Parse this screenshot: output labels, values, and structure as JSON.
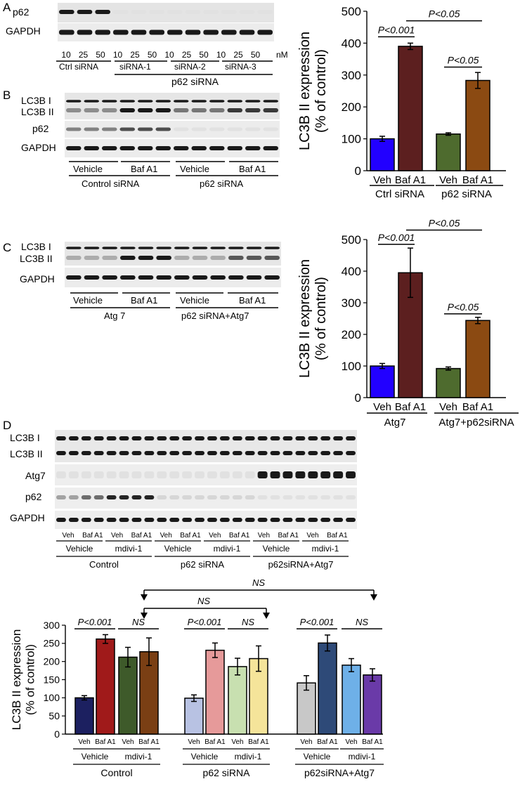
{
  "panels": {
    "A": {
      "label": "A",
      "blot_rows": [
        "p62",
        "GAPDH"
      ],
      "conc_labels": [
        "10",
        "25",
        "50",
        "10",
        "25",
        "50",
        "10",
        "25",
        "50",
        "10",
        "25",
        "50"
      ],
      "unit": "nM",
      "group_labels": [
        "Ctrl siRNA",
        "siRNA-1",
        "siRNA-2",
        "siRNA-3"
      ],
      "super_label": "p62 siRNA",
      "p62_band_strength": [
        1,
        1,
        1,
        0.05,
        0.05,
        0.05,
        0.05,
        0.05,
        0.05,
        0.05,
        0.05,
        0.05
      ],
      "gapdh_band_strength": [
        1,
        1,
        1,
        1,
        1,
        1,
        1,
        1,
        1,
        1,
        1,
        1
      ]
    },
    "B": {
      "label": "B",
      "blot_rows": [
        "LC3B I",
        "LC3B II",
        "p62",
        "GAPDH"
      ],
      "treatment_labels": [
        "Vehicle",
        "Baf A1",
        "Vehicle",
        "Baf A1"
      ],
      "group_labels": [
        "Control siRNA",
        "p62 siRNA"
      ],
      "lc3b2_band_strength": [
        0.45,
        0.45,
        0.45,
        1,
        1,
        1,
        0.55,
        0.55,
        0.55,
        0.85,
        0.85,
        0.85
      ],
      "p62_band_strength": [
        0.5,
        0.5,
        0.5,
        0.75,
        0.75,
        0.75,
        0.05,
        0.05,
        0.05,
        0.05,
        0.05,
        0.05
      ]
    },
    "C": {
      "label": "C",
      "blot_rows": [
        "LC3B I",
        "LC3B II",
        "GAPDH"
      ],
      "treatment_labels": [
        "Vehicle",
        "Baf A1",
        "Vehicle",
        "Baf A1"
      ],
      "group_labels": [
        "Atg 7",
        "p62 siRNA+Atg7"
      ],
      "lc3b2_band_strength": [
        0.3,
        0.3,
        0.3,
        1,
        1,
        1,
        0.3,
        0.3,
        0.3,
        0.7,
        0.7,
        0.7
      ]
    },
    "D": {
      "label": "D",
      "blot_rows": [
        "LC3B I",
        "LC3B II",
        "Atg7",
        "p62",
        "GAPDH"
      ],
      "veh_baf_labels": [
        "Veh",
        "Baf A1",
        "Veh",
        "Baf A1",
        "Veh",
        "Baf A1",
        "Veh",
        "Baf A1",
        "Veh",
        "Baf A1",
        "Veh",
        "Baf A1"
      ],
      "treatment_labels": [
        "Vehicle",
        "mdivi-1",
        "Vehicle",
        "mdivi-1",
        "Vehicle",
        "mdivi-1"
      ],
      "group_labels": [
        "Control",
        "p62 siRNA",
        "p62siRNA+Atg7"
      ],
      "atg7_band_strength": [
        0.05,
        0.05,
        0.05,
        0.05,
        0.05,
        0.05,
        0.05,
        0.05,
        1,
        1,
        1,
        1
      ],
      "p62_band_strength": [
        0.35,
        0.6,
        0.95,
        0.95,
        0.1,
        0.1,
        0.1,
        0.1,
        0.05,
        0.05,
        0.05,
        0.05
      ]
    }
  },
  "chart_data": [
    {
      "type": "bar",
      "panel": "B",
      "categories": [
        "Veh",
        "Baf A1",
        "Veh",
        "Baf A1"
      ],
      "values": [
        100,
        390,
        115,
        283
      ],
      "errors": [
        8,
        10,
        4,
        25
      ],
      "colors": [
        "#2200ff",
        "#5c1f1f",
        "#4e6b2e",
        "#8b4a12"
      ],
      "group_labels": [
        "Ctrl siRNA",
        "p62 siRNA"
      ],
      "ylabel": "LC3B II expression\n(% of control)",
      "ylim": [
        0,
        500
      ],
      "yticks": [
        0,
        100,
        200,
        300,
        400,
        500
      ],
      "annotations": [
        {
          "text": "P<0.001",
          "from": 0,
          "to": 1,
          "level": 420
        },
        {
          "text": "P<0.05",
          "from": 2,
          "to": 3,
          "level": 325
        },
        {
          "text": "P<0.05",
          "from": 1,
          "to": 3,
          "level": 470
        }
      ]
    },
    {
      "type": "bar",
      "panel": "C",
      "categories": [
        "Veh",
        "Baf A1",
        "Veh",
        "Baf A1"
      ],
      "values": [
        100,
        395,
        92,
        244
      ],
      "errors": [
        8,
        78,
        5,
        10
      ],
      "colors": [
        "#2200ff",
        "#5c1f1f",
        "#4e6b2e",
        "#8b4a12"
      ],
      "group_labels": [
        "Atg7",
        "Atg7+p62siRNA"
      ],
      "ylabel": "LC3B II expression\n(% of control)",
      "ylim": [
        0,
        500
      ],
      "yticks": [
        0,
        100,
        200,
        300,
        400,
        500
      ],
      "annotations": [
        {
          "text": "P<0.001",
          "from": 0,
          "to": 1,
          "level": 485
        },
        {
          "text": "P<0.05",
          "from": 2,
          "to": 3,
          "level": 265
        },
        {
          "text": "P<0.05",
          "from": 1,
          "to": 3,
          "level": 530
        }
      ]
    },
    {
      "type": "bar",
      "panel": "D",
      "categories": [
        "Veh",
        "Baf A1",
        "Veh",
        "Baf A1",
        "Veh",
        "Baf A1",
        "Veh",
        "Baf A1",
        "Veh",
        "Baf A1",
        "Veh",
        "Baf A1"
      ],
      "values": [
        100,
        262,
        212,
        227,
        99,
        231,
        186,
        208,
        141,
        251,
        190,
        163
      ],
      "errors": [
        6,
        12,
        27,
        38,
        9,
        20,
        23,
        35,
        20,
        22,
        18,
        17
      ],
      "colors": [
        "#1c2060",
        "#a01a1a",
        "#3e5a2a",
        "#7a3f14",
        "#b8c2e3",
        "#e69a9a",
        "#c8e0b0",
        "#f5e49a",
        "#c8c8c8",
        "#2e4a78",
        "#6eb0e8",
        "#6a3aa8"
      ],
      "treatment_labels": [
        "Vehicle",
        "mdivi-1",
        "Vehicle",
        "mdivi-1",
        "Vehicle",
        "mdivi-1"
      ],
      "group_labels": [
        "Control",
        "p62 siRNA",
        "p62siRNA+Atg7"
      ],
      "ylabel": "LC3B II expression\n(% of control)",
      "ylim": [
        0,
        300
      ],
      "yticks": [
        0,
        50,
        100,
        150,
        200,
        250,
        300
      ],
      "annotations": [
        {
          "text": "P<0.001",
          "from": 0,
          "to": 1,
          "level": 290
        },
        {
          "text": "NS",
          "from": 2,
          "to": 3,
          "level": 290
        },
        {
          "text": "P<0.001",
          "from": 4,
          "to": 5,
          "level": 290
        },
        {
          "text": "NS",
          "from": 6,
          "to": 7,
          "level": 290
        },
        {
          "text": "P<0.001",
          "from": 8,
          "to": 9,
          "level": 290
        },
        {
          "text": "NS",
          "from": 10,
          "to": 11,
          "level": 290
        }
      ],
      "comparisons": [
        {
          "text": "NS",
          "from_group": "Control mdivi-1",
          "to_group": "p62siRNA+Atg7 mdivi-1"
        },
        {
          "text": "NS",
          "from_group": "Control mdivi-1",
          "to_group": "p62 siRNA mdivi-1"
        }
      ]
    }
  ]
}
